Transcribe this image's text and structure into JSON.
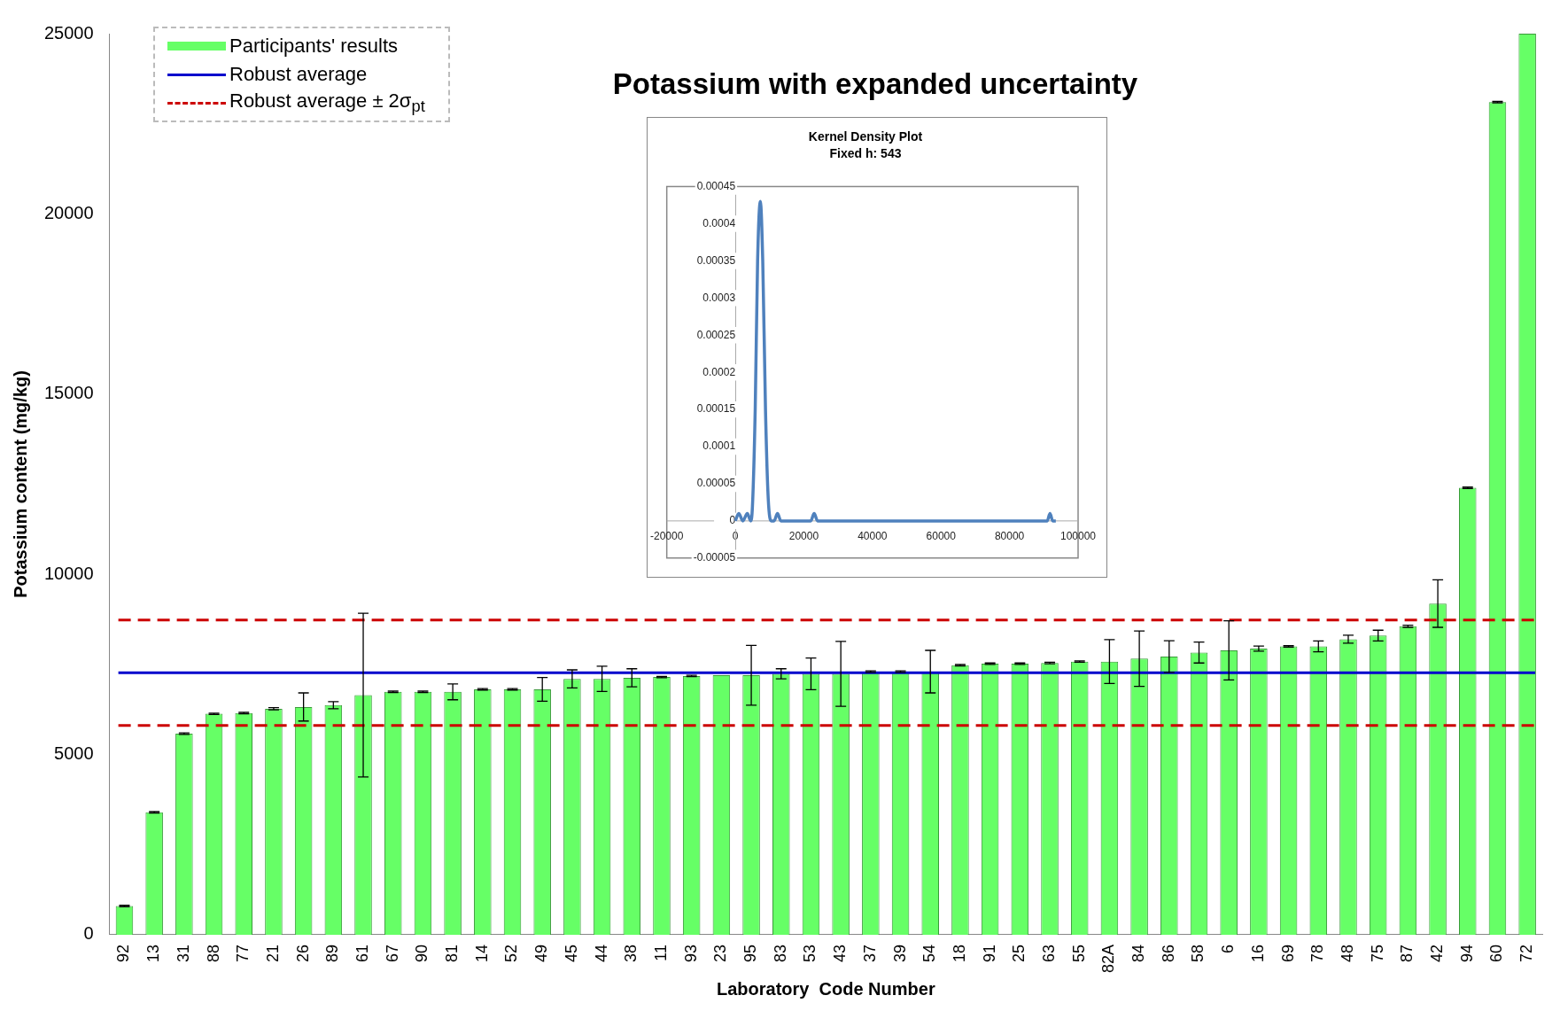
{
  "chart_data": [
    {
      "type": "bar",
      "title": "Potassium with expanded uncertainty",
      "xlabel": "Laboratory  Code Number",
      "ylabel": "Potassium content (mg/kg)",
      "categories": [
        "92",
        "13",
        "31",
        "88",
        "77",
        "21",
        "26",
        "89",
        "61",
        "67",
        "90",
        "81",
        "14",
        "52",
        "49",
        "45",
        "44",
        "38",
        "11",
        "93",
        "23",
        "95",
        "83",
        "53",
        "43",
        "37",
        "39",
        "54",
        "18",
        "91",
        "25",
        "63",
        "55",
        "82A",
        "84",
        "86",
        "58",
        "6",
        "16",
        "69",
        "78",
        "48",
        "75",
        "87",
        "42",
        "94",
        "60",
        "72"
      ],
      "series": [
        {
          "name": "Participants' results",
          "color": "#66ff66",
          "values": [
            800,
            3400,
            5580,
            6130,
            6150,
            6270,
            6320,
            6370,
            6650,
            6740,
            6740,
            6740,
            6810,
            6810,
            6810,
            7100,
            7100,
            7130,
            7150,
            7180,
            7200,
            7200,
            7240,
            7240,
            7240,
            7300,
            7300,
            7300,
            7480,
            7520,
            7520,
            7540,
            7580,
            7580,
            7660,
            7720,
            7830,
            7890,
            7940,
            8000,
            8000,
            8200,
            8300,
            8560,
            9190,
            12400,
            23100,
            25000
          ],
          "errors": [
            20,
            20,
            20,
            20,
            20,
            30,
            390,
            100,
            2270,
            20,
            20,
            220,
            20,
            20,
            330,
            250,
            350,
            250,
            20,
            20,
            null,
            830,
            140,
            440,
            900,
            20,
            20,
            590,
            20,
            20,
            20,
            20,
            20,
            610,
            770,
            440,
            290,
            820,
            70,
            20,
            150,
            110,
            150,
            30,
            660,
            20,
            20,
            null
          ]
        }
      ],
      "ref_lines": [
        {
          "axis": "y",
          "value": 7270,
          "label": "Robust average",
          "color": "#0000cc",
          "line_style": "solid"
        },
        {
          "axis": "y",
          "value": 8730,
          "label": "Robust average ± 2σ$_{pt}$",
          "color": "#cc0000",
          "line_style": "dashed"
        },
        {
          "axis": "y",
          "value": 5810,
          "color": "#cc0000",
          "line_style": "dashed"
        }
      ],
      "ylim": [
        0,
        25000
      ],
      "yticks": [
        0,
        5000,
        10000,
        15000,
        20000,
        25000
      ],
      "grid": false,
      "legend": "top left"
    },
    {
      "type": "line",
      "title": "Kernel Density Plot",
      "subtitle": "Fixed h: 543",
      "series": [
        {
          "color": "#4f81bd",
          "x": [
            0,
            1000,
            2200,
            3500,
            4500,
            5000,
            5800,
            6500,
            7300,
            8000,
            8800,
            9600,
            10500,
            11300,
            12300,
            13300,
            22000,
            23000,
            24000,
            91000,
            91800,
            92600,
            93500
          ],
          "values": [
            0,
            1e-05,
            0,
            1e-05,
            0,
            2e-05,
            0.00015,
            0.00035,
            0.00043,
            0.00035,
            0.00015,
            3e-05,
            0,
            0,
            1e-05,
            0,
            0,
            1e-05,
            0,
            0,
            1e-05,
            0,
            0
          ]
        }
      ],
      "xlim": [
        -20000,
        100000
      ],
      "xticks": [
        -20000,
        0,
        20000,
        40000,
        60000,
        80000,
        100000
      ],
      "ylim": [
        -5e-05,
        0.00045
      ],
      "yticks": [
        {
          "value": -5e-05,
          "label": "-0.00005"
        },
        0,
        {
          "value": 5e-05,
          "label": "0.00005"
        },
        0.0001,
        0.00015,
        0.0002,
        0.00025,
        0.0003,
        0.00035,
        0.0004,
        0.00045
      ],
      "grid": false,
      "legend": false,
      "marker": "none"
    }
  ]
}
